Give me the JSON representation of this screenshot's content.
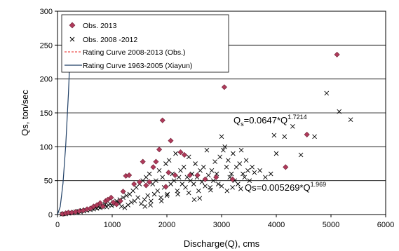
{
  "chart_data": {
    "type": "scatter",
    "xlabel": "Discharge(Q), cms",
    "ylabel": "Qs, ton/sec",
    "xlim": [
      0,
      6000
    ],
    "ylim": [
      0,
      300
    ],
    "x_ticks": [
      "0",
      "1000",
      "2000",
      "3000",
      "4000",
      "5000",
      "6000"
    ],
    "y_ticks": [
      "0",
      "50",
      "100",
      "150",
      "200",
      "250",
      "300"
    ],
    "grid": "horizontal",
    "legend_position": "top-left",
    "series": [
      {
        "name": "Obs. 2013",
        "marker": "diamond",
        "color": "#b03a5b",
        "points": [
          [
            90,
            1
          ],
          [
            150,
            2
          ],
          [
            200,
            3
          ],
          [
            260,
            3
          ],
          [
            330,
            4
          ],
          [
            400,
            5
          ],
          [
            470,
            6
          ],
          [
            540,
            8
          ],
          [
            600,
            9
          ],
          [
            660,
            12
          ],
          [
            720,
            14
          ],
          [
            780,
            17
          ],
          [
            830,
            12
          ],
          [
            880,
            20
          ],
          [
            920,
            22
          ],
          [
            980,
            25
          ],
          [
            1020,
            18
          ],
          [
            1080,
            15
          ],
          [
            1150,
            20
          ],
          [
            1200,
            34
          ],
          [
            1250,
            57
          ],
          [
            1310,
            58
          ],
          [
            1400,
            45
          ],
          [
            1500,
            48
          ],
          [
            1560,
            78
          ],
          [
            1620,
            43
          ],
          [
            1680,
            48
          ],
          [
            1750,
            70
          ],
          [
            1800,
            78
          ],
          [
            1860,
            96
          ],
          [
            1920,
            139
          ],
          [
            1980,
            41
          ],
          [
            2030,
            62
          ],
          [
            2070,
            109
          ],
          [
            2150,
            58
          ],
          [
            2250,
            92
          ],
          [
            2320,
            88
          ],
          [
            2420,
            58
          ],
          [
            2560,
            58
          ],
          [
            2700,
            52
          ],
          [
            2900,
            55
          ],
          [
            3050,
            188
          ],
          [
            3200,
            52
          ],
          [
            4170,
            70
          ],
          [
            4560,
            118
          ],
          [
            5110,
            236
          ]
        ]
      },
      {
        "name": "Obs. 2008 -2012",
        "marker": "x",
        "color": "#000000",
        "points": [
          [
            80,
            0.5
          ],
          [
            100,
            1
          ],
          [
            120,
            1
          ],
          [
            150,
            1
          ],
          [
            180,
            2
          ],
          [
            210,
            2
          ],
          [
            240,
            3
          ],
          [
            270,
            2
          ],
          [
            300,
            3
          ],
          [
            330,
            4
          ],
          [
            360,
            3
          ],
          [
            390,
            5
          ],
          [
            420,
            4
          ],
          [
            450,
            6
          ],
          [
            480,
            5
          ],
          [
            510,
            7
          ],
          [
            540,
            6
          ],
          [
            570,
            8
          ],
          [
            600,
            7
          ],
          [
            630,
            9
          ],
          [
            660,
            8
          ],
          [
            690,
            10
          ],
          [
            720,
            9
          ],
          [
            750,
            11
          ],
          [
            780,
            10
          ],
          [
            810,
            13
          ],
          [
            840,
            12
          ],
          [
            870,
            15
          ],
          [
            900,
            11
          ],
          [
            930,
            14
          ],
          [
            960,
            16
          ],
          [
            990,
            13
          ],
          [
            1020,
            17
          ],
          [
            1050,
            15
          ],
          [
            1080,
            20
          ],
          [
            1110,
            18
          ],
          [
            1140,
            22
          ],
          [
            1170,
            12
          ],
          [
            1200,
            25
          ],
          [
            1230,
            10
          ],
          [
            1260,
            28
          ],
          [
            1290,
            14
          ],
          [
            1320,
            30
          ],
          [
            1350,
            18
          ],
          [
            1380,
            35
          ],
          [
            1410,
            20
          ],
          [
            1440,
            40
          ],
          [
            1470,
            25
          ],
          [
            1500,
            45
          ],
          [
            1530,
            16
          ],
          [
            1560,
            50
          ],
          [
            1590,
            22
          ],
          [
            1620,
            55
          ],
          [
            1650,
            28
          ],
          [
            1680,
            60
          ],
          [
            1710,
            20
          ],
          [
            1740,
            45
          ],
          [
            1770,
            30
          ],
          [
            1800,
            50
          ],
          [
            1830,
            35
          ],
          [
            1860,
            65
          ],
          [
            1890,
            25
          ],
          [
            1920,
            55
          ],
          [
            1950,
            40
          ],
          [
            1980,
            75
          ],
          [
            2010,
            30
          ],
          [
            2040,
            80
          ],
          [
            2070,
            45
          ],
          [
            2100,
            60
          ],
          [
            2130,
            50
          ],
          [
            2160,
            90
          ],
          [
            2190,
            35
          ],
          [
            2220,
            55
          ],
          [
            2250,
            65
          ],
          [
            2280,
            45
          ],
          [
            2310,
            70
          ],
          [
            2340,
            40
          ],
          [
            2370,
            55
          ],
          [
            2400,
            85
          ],
          [
            2430,
            50
          ],
          [
            2460,
            60
          ],
          [
            2490,
            45
          ],
          [
            2520,
            75
          ],
          [
            2550,
            55
          ],
          [
            2580,
            35
          ],
          [
            2610,
            65
          ],
          [
            2640,
            48
          ],
          [
            2670,
            70
          ],
          [
            2700,
            42
          ],
          [
            2730,
            95
          ],
          [
            2760,
            58
          ],
          [
            2790,
            40
          ],
          [
            2820,
            65
          ],
          [
            2850,
            50
          ],
          [
            2880,
            78
          ],
          [
            2910,
            60
          ],
          [
            2940,
            45
          ],
          [
            2970,
            85
          ],
          [
            3000,
            115
          ],
          [
            3030,
            95
          ],
          [
            3060,
            100
          ],
          [
            3090,
            70
          ],
          [
            3120,
            80
          ],
          [
            3150,
            55
          ],
          [
            3180,
            60
          ],
          [
            3210,
            90
          ],
          [
            3240,
            50
          ],
          [
            3270,
            70
          ],
          [
            3300,
            45
          ],
          [
            3330,
            75
          ],
          [
            3360,
            95
          ],
          [
            3390,
            60
          ],
          [
            3420,
            55
          ],
          [
            3450,
            80
          ],
          [
            3480,
            65
          ],
          [
            3510,
            50
          ],
          [
            3560,
            70
          ],
          [
            3600,
            62
          ],
          [
            3700,
            65
          ],
          [
            3800,
            55
          ],
          [
            3900,
            60
          ],
          [
            3960,
            117
          ],
          [
            4000,
            90
          ],
          [
            4150,
            115
          ],
          [
            4300,
            130
          ],
          [
            4450,
            88
          ],
          [
            4700,
            115
          ],
          [
            4920,
            179
          ],
          [
            5150,
            152
          ],
          [
            5360,
            140
          ],
          [
            2000,
            28
          ],
          [
            2200,
            30
          ],
          [
            2400,
            32
          ],
          [
            2600,
            24
          ],
          [
            2800,
            36
          ],
          [
            3000,
            42
          ],
          [
            3100,
            35
          ],
          [
            3200,
            40
          ],
          [
            3350,
            38
          ],
          [
            2500,
            22
          ],
          [
            1900,
            20
          ],
          [
            1700,
            14
          ],
          [
            1600,
            12
          ]
        ]
      }
    ],
    "curves": [
      {
        "name": "Rating Curve 2008-2013 (Obs.)",
        "style": "dashed",
        "color": "#e8211c",
        "coefficient": 0.0647,
        "exponent": 1.7214,
        "x_range": [
          1600,
          6000
        ]
      },
      {
        "name": "Rating Curve 1963-2005 (Xiayun)",
        "style": "solid",
        "color": "#1f3f66",
        "coefficient": 0.005269,
        "exponent": 1.969,
        "x_range": [
          0,
          6000
        ]
      }
    ],
    "annotations": [
      {
        "id": "eq-obs",
        "base": "Q",
        "sub": "s",
        "mid": "=0.0647*Q",
        "sup": "1.7214"
      },
      {
        "id": "eq-xiayun",
        "base": "Qs=0.005269*Q",
        "sup": "1.969"
      }
    ]
  }
}
